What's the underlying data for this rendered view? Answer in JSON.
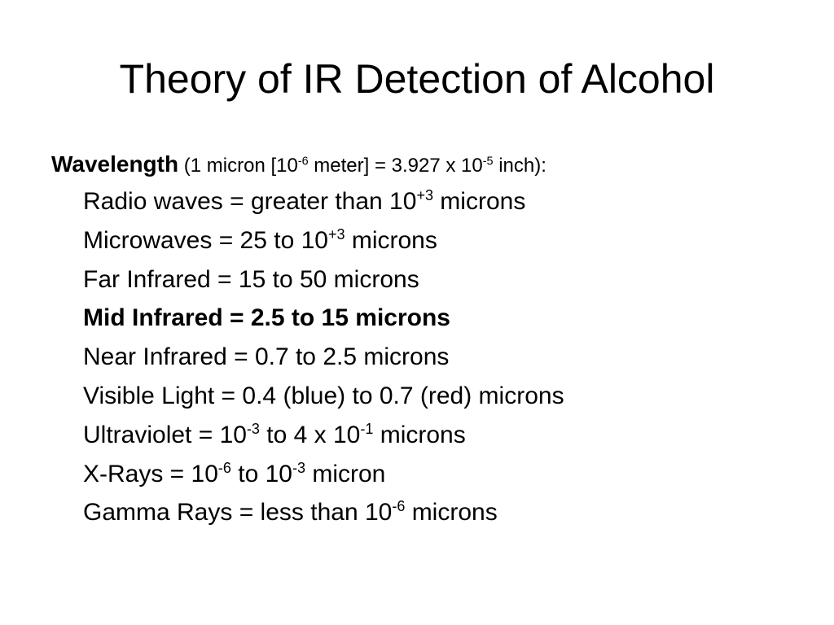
{
  "title": "Theory of IR Detection of Alcohol",
  "heading": {
    "label": "Wavelength",
    "segments": [
      {
        "text": "(1 micron [10"
      },
      {
        "sup": "-6"
      },
      {
        "text": " meter] = 3.927 x 10"
      },
      {
        "sup": "-5"
      },
      {
        "text": " inch):"
      }
    ]
  },
  "items": [
    {
      "bold": false,
      "segments": [
        {
          "text": "Radio waves = greater than 10"
        },
        {
          "sup": "+3"
        },
        {
          "text": " microns"
        }
      ]
    },
    {
      "bold": false,
      "segments": [
        {
          "text": "Microwaves = 25 to 10"
        },
        {
          "sup": "+3"
        },
        {
          "text": " microns"
        }
      ]
    },
    {
      "bold": false,
      "segments": [
        {
          "text": "Far Infrared = 15 to 50 microns"
        }
      ]
    },
    {
      "bold": true,
      "segments": [
        {
          "text": "Mid Infrared = 2.5 to 15 microns"
        }
      ]
    },
    {
      "bold": false,
      "segments": [
        {
          "text": "Near Infrared = 0.7 to 2.5 microns"
        }
      ]
    },
    {
      "bold": false,
      "segments": [
        {
          "text": "Visible Light = 0.4 (blue) to 0.7 (red) microns"
        }
      ]
    },
    {
      "bold": false,
      "segments": [
        {
          "text": "Ultraviolet = 10"
        },
        {
          "sup": "-3"
        },
        {
          "text": " to 4 x 10"
        },
        {
          "sup": "-1"
        },
        {
          "text": " microns"
        }
      ]
    },
    {
      "bold": false,
      "segments": [
        {
          "text": "X-Rays = 10"
        },
        {
          "sup": "-6"
        },
        {
          "text": " to 10"
        },
        {
          "sup": "-3"
        },
        {
          "text": " micron"
        }
      ]
    },
    {
      "bold": false,
      "segments": [
        {
          "text": "Gamma Rays = less than 10"
        },
        {
          "sup": "-6"
        },
        {
          "text": " microns"
        }
      ]
    }
  ]
}
